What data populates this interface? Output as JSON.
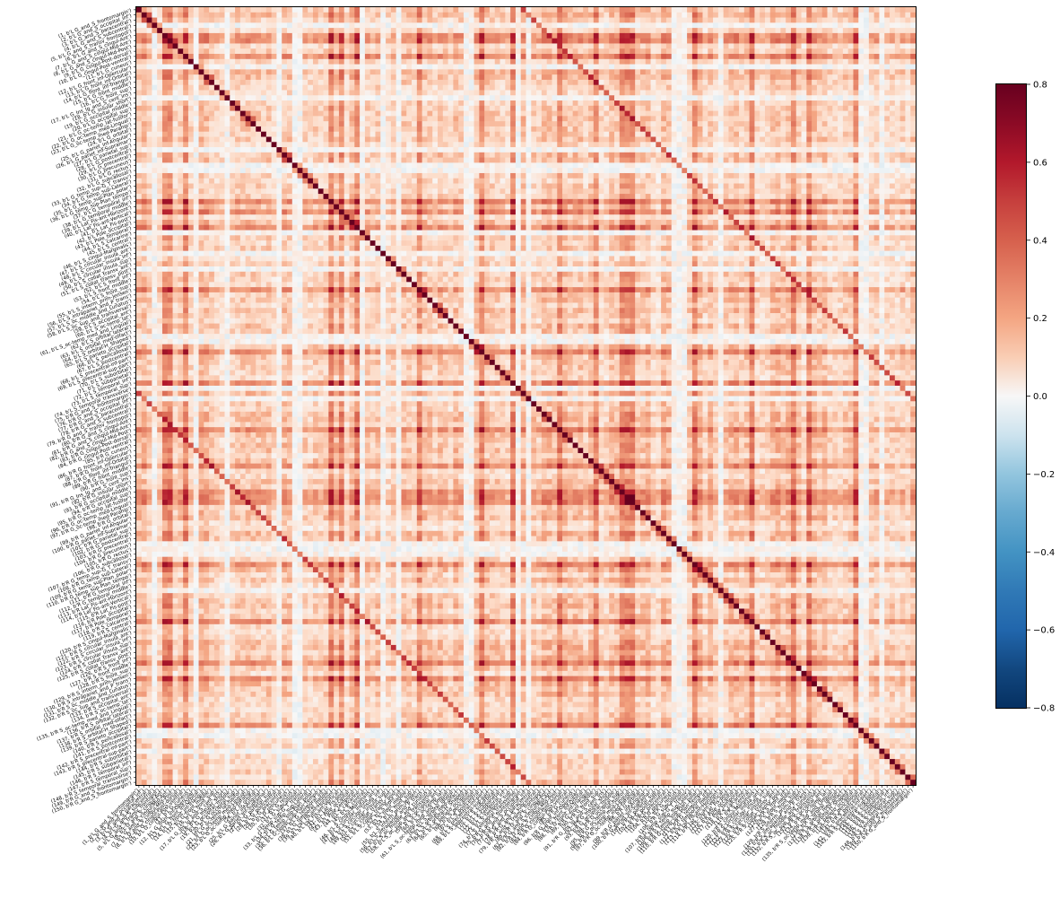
{
  "chart_data": {
    "type": "heatmap",
    "title": "",
    "xlabel": "",
    "ylabel": "",
    "colormap": "RdBu_r",
    "value_range": [
      -0.8,
      0.8
    ],
    "colorbar_ticks": [
      "0.8",
      "0.6",
      "0.4",
      "0.2",
      "0.0",
      "−0.2",
      "−0.4",
      "−0.6",
      "−0.8"
    ],
    "colorbar_tick_values": [
      0.8,
      0.6,
      0.4,
      0.2,
      0.0,
      -0.2,
      -0.4,
      -0.6,
      -0.8
    ],
    "size": 150,
    "diagonal_value": 0.8,
    "hemisphere_prefixes": [
      "b'L ",
      "b'R "
    ],
    "region_names": [
      "G_and_S_frontomargin",
      "G_and_S_occipital_inf",
      "G_and_S_paracentral",
      "G_and_S_subcentral",
      "G_and_S_transv_frontopol",
      "G_and_S_cingul-Ant",
      "G_and_S_cingul-Mid-Ant",
      "G_and_S_cingul-Mid-Post",
      "G_cingul-Post-dorsal",
      "G_cingul-Post-ventral",
      "G_cuneus",
      "G_front_inf-Opercular",
      "G_front_inf-Orbital",
      "G_front_inf-Triangul",
      "G_front_middle",
      "G_front_sup",
      "G_Ins_lg_and_S_cent_ins",
      "G_insular_short",
      "G_occipital_middle",
      "G_occipital_sup",
      "G_oc-temp_lat-fusifor",
      "G_oc-temp_med-Lingual",
      "G_oc-temp_med-Parahip",
      "G_orbital",
      "G_pariet_inf-Angular",
      "G_pariet_inf-Supramar",
      "G_parietal_sup",
      "G_postcentral",
      "G_precentral",
      "G_precuneus",
      "G_rectus",
      "G_subcallosal",
      "G_temp_sup-G_T_transv",
      "G_temp_sup-Lateral",
      "G_temp_sup-Plan_polar",
      "G_temp_sup-Plan_tempo",
      "G_temporal_inf",
      "G_temporal_middle",
      "Lat_Fis-ant-Horizont",
      "Lat_Fis-ant-Vertical",
      "Lat_Fis-post",
      "Pole_occipital",
      "Pole_temporal",
      "S_calcarine",
      "S_central",
      "S_cingul-Marginalis",
      "S_circular_insula_ant",
      "S_circular_insula_inf",
      "S_circular_insula_sup",
      "S_collat_transv_ant",
      "S_collat_transv_post",
      "S_front_inf",
      "S_front_middle",
      "S_front_sup",
      "S_interm_prim-Jensen",
      "S_intrapariet_and_P_trans",
      "S_oc_middle_and_Lunatus",
      "S_oc_sup_and_transversal",
      "S_occipital_ant",
      "S_oc-temp_lat",
      "S_oc-temp_med_and_Lingual",
      "S_orbital_lateral",
      "S_orbital_med-olfact",
      "S_orbital-H_Shaped",
      "S_parieto_occipital",
      "S_pericallosal",
      "S_postcentral",
      "S_precentral-inf-part",
      "S_precentral-sup-part",
      "S_suborbital",
      "S_subparietal",
      "S_temporal_inf",
      "S_temporal_sup",
      "S_temporal_transverse",
      "G_and_S_frontomargin"
    ]
  }
}
